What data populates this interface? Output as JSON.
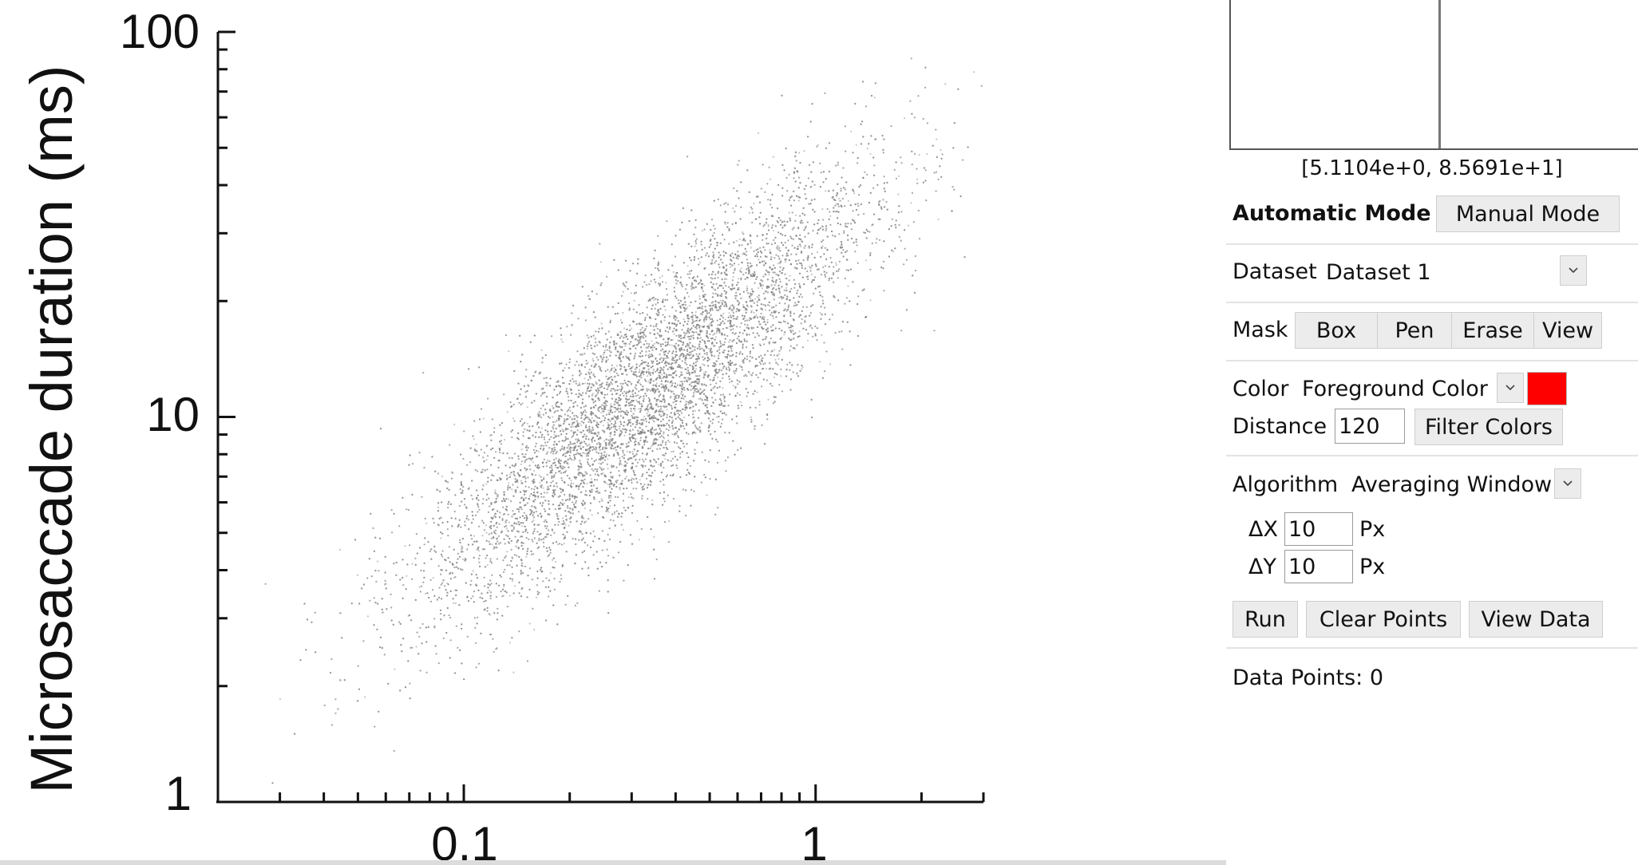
{
  "chart_data": {
    "type": "scatter",
    "ylabel": "Microsaccade duration (ms)",
    "xlabel": "",
    "xscale": "log",
    "yscale": "log",
    "xlim": [
      0.02,
      3
    ],
    "ylim": [
      1,
      100
    ],
    "x_tick_labels": [
      "0.1",
      "1"
    ],
    "y_tick_labels": [
      "1",
      "10",
      "100"
    ],
    "grid": false,
    "point_color": "#808080",
    "cloud": {
      "count": 14000,
      "center": [
        0.33,
        11.5
      ],
      "description_stats": {
        "log10_x_sd": 0.32,
        "log10_y_sd": 0.28,
        "correlation": 0.85
      }
    }
  },
  "side_panel": {
    "zoom_coords": "[5.1104e+0, 8.5691e+1]",
    "mode": {
      "auto_label": "Automatic Mode",
      "manual_label": "Manual Mode"
    },
    "dataset": {
      "label": "Dataset",
      "value": "Dataset 1"
    },
    "mask": {
      "label": "Mask",
      "box": "Box",
      "pen": "Pen",
      "erase": "Erase",
      "view": "View"
    },
    "color": {
      "label": "Color",
      "value": "Foreground Color",
      "swatch": "#ff0000",
      "distance_label": "Distance",
      "distance_value": "120",
      "filter_label": "Filter Colors"
    },
    "algorithm": {
      "label": "Algorithm",
      "value": "Averaging Window",
      "dx_label": "ΔX",
      "dx_value": "10",
      "dy_label": "ΔY",
      "dy_value": "10",
      "unit": "Px"
    },
    "actions": {
      "run": "Run",
      "clear": "Clear Points",
      "view_data": "View Data"
    },
    "data_points": "Data Points: 0"
  }
}
